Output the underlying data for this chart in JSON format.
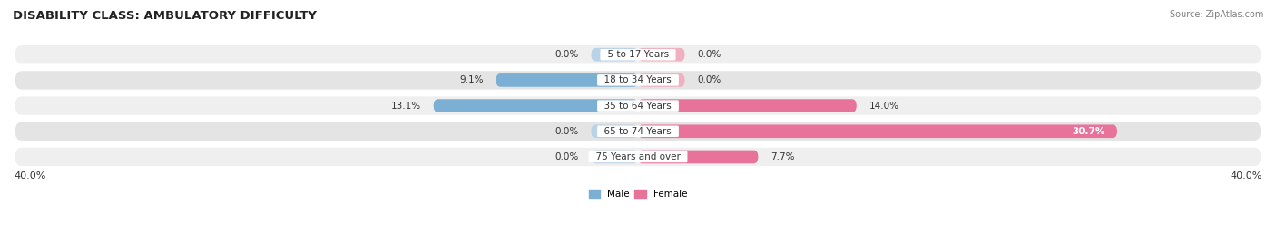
{
  "title": "DISABILITY CLASS: AMBULATORY DIFFICULTY",
  "source": "Source: ZipAtlas.com",
  "categories": [
    "5 to 17 Years",
    "18 to 34 Years",
    "35 to 64 Years",
    "65 to 74 Years",
    "75 Years and over"
  ],
  "male_values": [
    0.0,
    9.1,
    13.1,
    0.0,
    0.0
  ],
  "female_values": [
    0.0,
    0.0,
    14.0,
    30.7,
    7.7
  ],
  "max_val": 40.0,
  "male_color": "#7bafd4",
  "female_color": "#e8739a",
  "male_light_color": "#b8d2e8",
  "female_light_color": "#f0b0c0",
  "row_bg_colors": [
    "#efefef",
    "#e4e4e4"
  ],
  "title_fontsize": 9.5,
  "label_fontsize": 7.5,
  "value_fontsize": 7.5,
  "tick_fontsize": 8,
  "fig_width": 14.06,
  "fig_height": 2.69
}
